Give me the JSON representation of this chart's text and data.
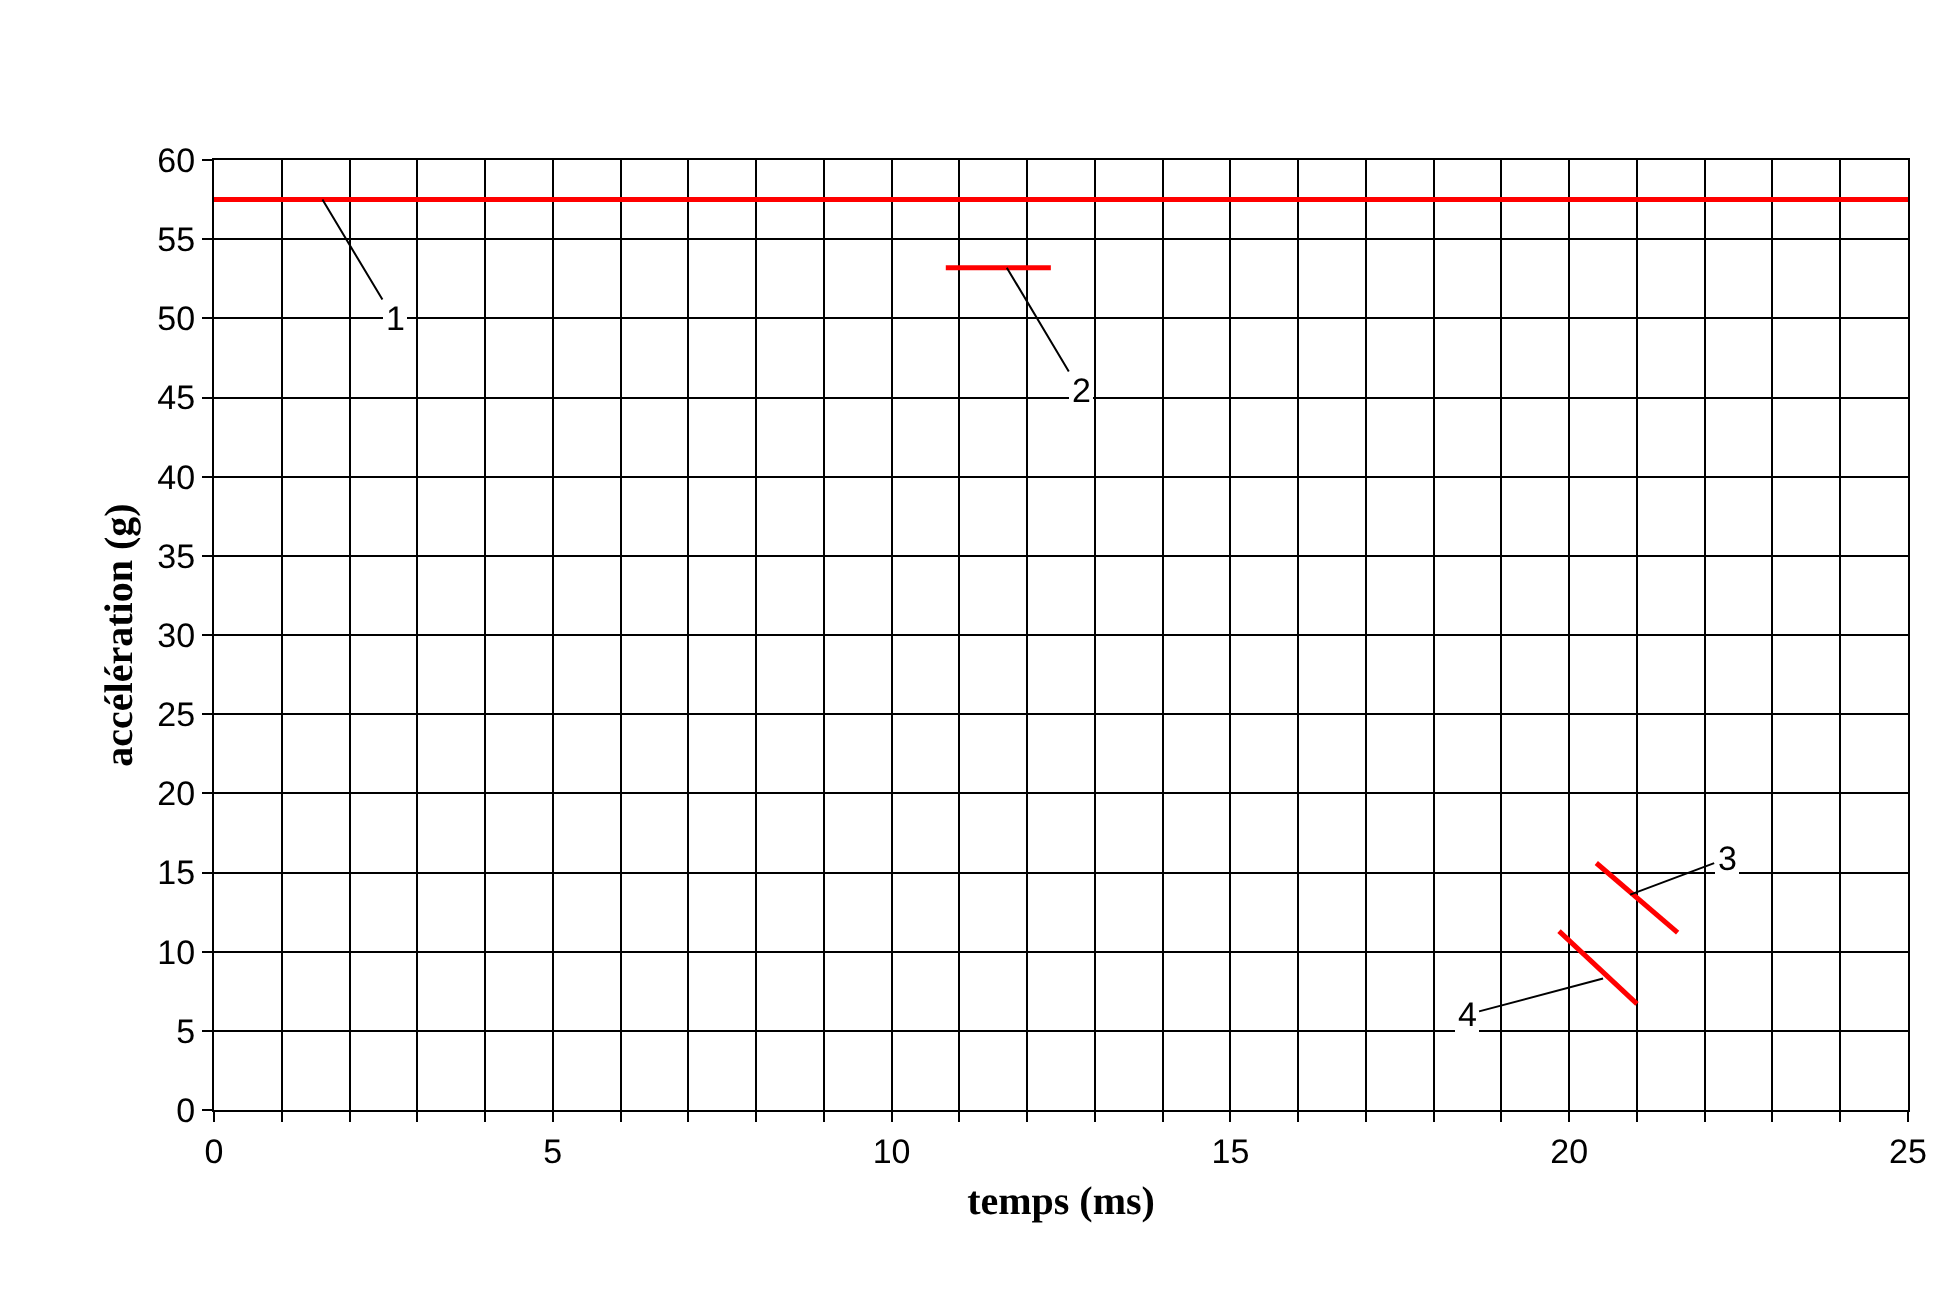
{
  "chart_data": {
    "type": "line",
    "xlabel": "temps (ms)",
    "ylabel": "accélération (g)",
    "xlim": [
      0,
      25
    ],
    "ylim": [
      0,
      60
    ],
    "xticks": [
      0,
      {
        "value": 1,
        "label": null
      },
      {
        "value": 2,
        "label": null
      },
      {
        "value": 3,
        "label": null
      },
      {
        "value": 4,
        "label": null
      },
      5,
      {
        "value": 6,
        "label": null
      },
      {
        "value": 7,
        "label": null
      },
      {
        "value": 8,
        "label": null
      },
      {
        "value": 9,
        "label": null
      },
      10,
      {
        "value": 11,
        "label": null
      },
      {
        "value": 12,
        "label": null
      },
      {
        "value": 13,
        "label": null
      },
      {
        "value": 14,
        "label": null
      },
      15,
      {
        "value": 16,
        "label": null
      },
      {
        "value": 17,
        "label": null
      },
      {
        "value": 18,
        "label": null
      },
      {
        "value": 19,
        "label": null
      },
      20,
      {
        "value": 21,
        "label": null
      },
      {
        "value": 22,
        "label": null
      },
      {
        "value": 23,
        "label": null
      },
      {
        "value": 24,
        "label": null
      },
      25
    ],
    "yticks": [
      0,
      5,
      10,
      15,
      20,
      25,
      30,
      35,
      40,
      45,
      50,
      55,
      60
    ],
    "grid": true,
    "marker": "none",
    "line_style": "solid",
    "series": [
      {
        "color": "#ff0000",
        "x": [
          0,
          25
        ],
        "values": [
          57.5,
          57.5
        ]
      },
      {
        "color": "#ff0000",
        "x": [
          10.8,
          12.35
        ],
        "values": [
          53.2,
          53.2
        ]
      },
      {
        "color": "#ff0000",
        "x": [
          20.4,
          21.6
        ],
        "values": [
          15.6,
          11.2
        ]
      },
      {
        "color": "#ff0000",
        "x": [
          19.85,
          21.0
        ],
        "values": [
          11.3,
          6.7
        ]
      }
    ],
    "annotations": [
      {
        "text": "1",
        "x": 1.6,
        "y": 57.5
      },
      {
        "text": "2",
        "x": 11.7,
        "y": 53.2
      },
      {
        "text": "3",
        "x": 20.9,
        "y": 13.6
      },
      {
        "text": "4",
        "x": 20.5,
        "y": 8.3
      }
    ]
  }
}
